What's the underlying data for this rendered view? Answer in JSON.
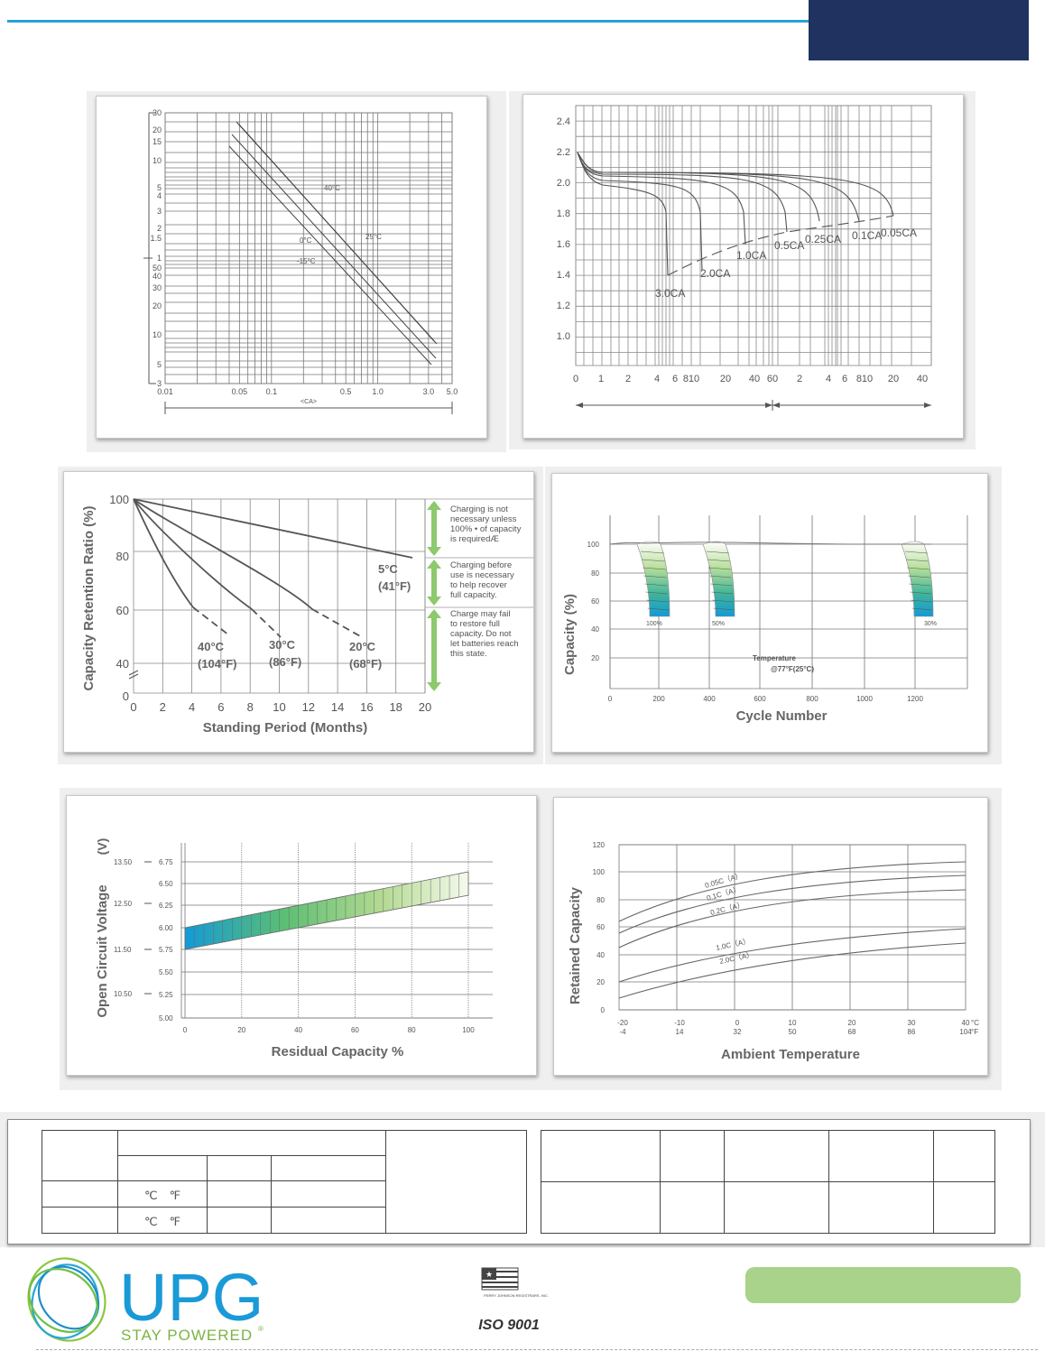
{
  "chart_data": [
    {
      "type": "line",
      "xscale": "log",
      "xlabel": "<CA>",
      "xticks": [
        "0.01",
        "0.05",
        "0.1",
        "0.5",
        "1.0",
        "3.0",
        "5.0"
      ],
      "yticks_upper": [
        "30",
        "20",
        "15",
        "10",
        "5",
        "4",
        "3",
        "2",
        "1.5",
        "1"
      ],
      "yticks_lower": [
        "50",
        "40",
        "30",
        "20",
        "10",
        "5",
        "3"
      ],
      "series": [
        {
          "name": "40°C",
          "x": [
            0.04,
            3.0
          ],
          "y": [
            22,
            8
          ]
        },
        {
          "name": "25°C",
          "x": [
            0.04,
            3.2
          ],
          "y": [
            24,
            7
          ]
        },
        {
          "name": "0°C",
          "x": [
            0.04,
            3.4
          ],
          "y": [
            17,
            6
          ]
        },
        {
          "name": "-15°C",
          "x": [
            0.04,
            3.5
          ],
          "y": [
            13,
            4
          ]
        }
      ]
    },
    {
      "type": "line",
      "ylim": [
        1.0,
        2.4
      ],
      "yticks": [
        "2.4",
        "2.2",
        "2.0",
        "1.8",
        "1.6",
        "1.4",
        "1.2",
        "1.0"
      ],
      "xticks": [
        "0",
        "1",
        "2",
        "4",
        "6",
        "810",
        "20",
        "40",
        "60",
        "2",
        "4",
        "6",
        "810",
        "20",
        "40"
      ],
      "series": [
        {
          "name": "3.0CA"
        },
        {
          "name": "2.0CA"
        },
        {
          "name": "1.0CA"
        },
        {
          "name": "0.5CA"
        },
        {
          "name": "0.25CA"
        },
        {
          "name": "0.1CA"
        },
        {
          "name": "0.05CA"
        }
      ]
    },
    {
      "type": "line",
      "ylabel": "Capacity Retention Ratio (%)",
      "xlabel": "Standing Period (Months)",
      "yticks": [
        "100",
        "80",
        "60",
        "40",
        "0"
      ],
      "xticks": [
        "0",
        "2",
        "4",
        "6",
        "8",
        "10",
        "12",
        "14",
        "16",
        "18",
        "20"
      ],
      "series": [
        {
          "name": "5°C (41°F)",
          "x": [
            0,
            19
          ],
          "y": [
            100,
            79
          ]
        },
        {
          "name": "20°C (68°F)",
          "x": [
            0,
            16
          ],
          "y": [
            100,
            50
          ]
        },
        {
          "name": "30°C (86°F)",
          "x": [
            0,
            10
          ],
          "y": [
            100,
            50
          ]
        },
        {
          "name": "40°C (104°F)",
          "x": [
            0,
            6.5
          ],
          "y": [
            100,
            50
          ]
        }
      ],
      "annotations": [
        "Charging is not necessary unless 100% • of capacity is requiredÆ",
        "Charging before use is necessary to help recover full capacity.",
        "Charge may fail to restore full capacity. Do not let batteries reach this state."
      ]
    },
    {
      "type": "area",
      "ylabel": "Capacity (%)",
      "xlabel": "Cycle Number",
      "yticks": [
        "100",
        "80",
        "60",
        "40",
        "20"
      ],
      "xticks": [
        "0",
        "200",
        "400",
        "600",
        "800",
        "1000",
        "1200"
      ],
      "series": [
        {
          "name": "100%"
        },
        {
          "name": "50%"
        },
        {
          "name": "30%"
        }
      ],
      "annotation": [
        "Temperature",
        "@77°F(25°C)"
      ]
    },
    {
      "type": "area",
      "ylabel": "Open Circuit Voltage",
      "ylabel_unit": "(V)",
      "xlabel": "Residual Capacity %",
      "yticks_12v": [
        "13.50",
        "12.50",
        "11.50",
        "10.50"
      ],
      "yticks_6v": [
        "6.75",
        "6.50",
        "6.25",
        "6.00",
        "5.75",
        "5.50",
        "5.25",
        "5.00"
      ],
      "xticks": [
        "0",
        "20",
        "40",
        "60",
        "80",
        "100"
      ]
    },
    {
      "type": "line",
      "ylabel": "Retained Capacity",
      "xlabel": "Ambient Temperature",
      "yticks": [
        "120",
        "100",
        "80",
        "60",
        "40",
        "20",
        "0"
      ],
      "xticks_c": [
        "-20",
        "-10",
        "0",
        "10",
        "20",
        "30",
        "40"
      ],
      "xticks_f": [
        "-4",
        "14",
        "32",
        "50",
        "68",
        "86",
        "104"
      ],
      "unit_c": "°C",
      "unit_f": "°F",
      "series": [
        {
          "name": "0.05C（A）"
        },
        {
          "name": "0.1C（A）"
        },
        {
          "name": "0.2C（A）"
        },
        {
          "name": "1.0C（A）"
        },
        {
          "name": "2.0C（A）"
        }
      ]
    }
  ],
  "table": {
    "unit_row1": "℃　℉",
    "unit_row2": "℃　℉"
  },
  "brand": {
    "name": "UPG",
    "tagline": "STAY POWERED",
    "registered": "®",
    "cert_small": "PERRY JOHNSON REGISTRARS, INC.",
    "cert": "ISO 9001"
  }
}
